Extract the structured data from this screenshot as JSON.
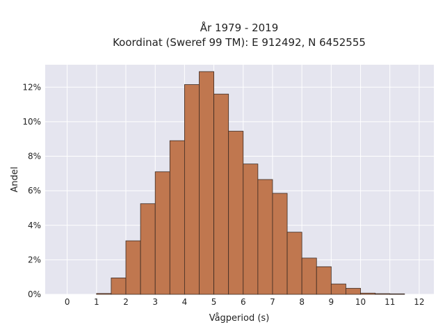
{
  "chart_data": {
    "type": "bar",
    "title_lines": [
      "År 1979 - 2019",
      "Koordinat (Sweref 99 TM): E 912492, N 6452555"
    ],
    "xlabel": "Vågperiod (s)",
    "ylabel": "Andel",
    "xlim": [
      -0.75,
      12.5
    ],
    "ylim": [
      0,
      13.3
    ],
    "x_ticks": [
      0,
      1,
      2,
      3,
      4,
      5,
      6,
      7,
      8,
      9,
      10,
      11,
      12
    ],
    "x_tick_labels": [
      "0",
      "1",
      "2",
      "3",
      "4",
      "5",
      "6",
      "7",
      "8",
      "9",
      "10",
      "11",
      "12"
    ],
    "y_ticks": [
      0,
      2,
      4,
      6,
      8,
      10,
      12
    ],
    "y_tick_labels": [
      "0%",
      "2%",
      "4%",
      "6%",
      "8%",
      "10%",
      "12%"
    ],
    "bin_width": 0.5,
    "bins": [
      {
        "start": 1.0,
        "value": 0.05
      },
      {
        "start": 1.5,
        "value": 0.95
      },
      {
        "start": 2.0,
        "value": 3.1
      },
      {
        "start": 2.5,
        "value": 5.25
      },
      {
        "start": 3.0,
        "value": 7.1
      },
      {
        "start": 3.5,
        "value": 8.9
      },
      {
        "start": 4.0,
        "value": 12.15
      },
      {
        "start": 4.5,
        "value": 12.9
      },
      {
        "start": 5.0,
        "value": 11.6
      },
      {
        "start": 5.5,
        "value": 9.45
      },
      {
        "start": 6.0,
        "value": 7.55
      },
      {
        "start": 6.5,
        "value": 6.65
      },
      {
        "start": 7.0,
        "value": 5.85
      },
      {
        "start": 7.5,
        "value": 3.6
      },
      {
        "start": 8.0,
        "value": 2.1
      },
      {
        "start": 8.5,
        "value": 1.6
      },
      {
        "start": 9.0,
        "value": 0.6
      },
      {
        "start": 9.5,
        "value": 0.35
      },
      {
        "start": 10.0,
        "value": 0.07
      },
      {
        "start": 10.5,
        "value": 0.04
      },
      {
        "start": 11.0,
        "value": 0.03
      }
    ],
    "grid": true,
    "colors": {
      "bar_fill": "#c0774f",
      "bar_edge": "#3b2a22",
      "plot_bg": "#e5e5ef",
      "grid": "#ffffff"
    }
  }
}
